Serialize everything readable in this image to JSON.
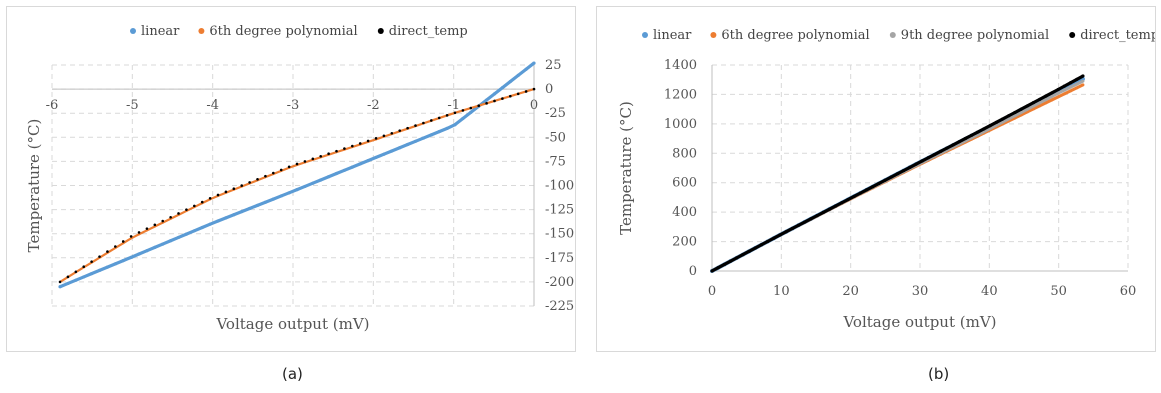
{
  "chart_data": [
    {
      "type": "scatter",
      "panel_label": "(a)",
      "xlabel": "Voltage output (mV)",
      "ylabel": "Temperature (°C)",
      "xlim": [
        -6,
        0
      ],
      "ylim": [
        -225,
        25
      ],
      "x_ticks": [
        "-6",
        "-5",
        "-4",
        "-3",
        "-2",
        "-1",
        "0"
      ],
      "y_ticks": [
        "25",
        "0",
        "-25",
        "-50",
        "-75",
        "-100",
        "-125",
        "-150",
        "-175",
        "-200",
        "-225"
      ],
      "grid": true,
      "legend_position": "top",
      "series": [
        {
          "name": "linear",
          "color": "#5b9bd5",
          "points": [
            [
              -5.9,
              -205
            ],
            [
              -5,
              -174
            ],
            [
              -4,
              -139
            ],
            [
              -3,
              -106
            ],
            [
              -2,
              -72
            ],
            [
              -1,
              -38
            ],
            [
              0,
              27
            ]
          ]
        },
        {
          "name": "6th degree polynomial",
          "color": "#ed7d31",
          "points": [
            [
              -5.9,
              -200
            ],
            [
              -5,
              -154
            ],
            [
              -4,
              -113
            ],
            [
              -3,
              -80
            ],
            [
              -2,
              -53
            ],
            [
              -1,
              -25
            ],
            [
              0,
              0
            ]
          ]
        },
        {
          "name": "direct_temp",
          "color": "#000000",
          "points": [
            [
              -5.9,
              -200
            ],
            [
              -5,
              -152
            ],
            [
              -4,
              -112
            ],
            [
              -3,
              -79
            ],
            [
              -2,
              -52
            ],
            [
              -1,
              -25
            ],
            [
              0,
              0
            ]
          ]
        }
      ]
    },
    {
      "type": "scatter",
      "panel_label": "(b)",
      "xlabel": "Voltage output (mV)",
      "ylabel": "Temperature (°C)",
      "xlim": [
        0,
        60
      ],
      "ylim": [
        0,
        1400
      ],
      "x_ticks": [
        "0",
        "10",
        "20",
        "30",
        "40",
        "50",
        "60"
      ],
      "y_ticks": [
        "0",
        "200",
        "400",
        "600",
        "800",
        "1000",
        "1200",
        "1400"
      ],
      "grid": true,
      "legend_position": "top",
      "series": [
        {
          "name": "linear",
          "color": "#5b9bd5",
          "points": [
            [
              0,
              0
            ],
            [
              10,
              250
            ],
            [
              20,
              495
            ],
            [
              30,
              740
            ],
            [
              40,
              980
            ],
            [
              50,
              1225
            ],
            [
              53.5,
              1305
            ]
          ]
        },
        {
          "name": "6th degree polynomial",
          "color": "#ed7d31",
          "points": [
            [
              0,
              0
            ],
            [
              10,
              250
            ],
            [
              20,
              490
            ],
            [
              30,
              725
            ],
            [
              40,
              955
            ],
            [
              50,
              1185
            ],
            [
              53.5,
              1265
            ]
          ]
        },
        {
          "name": "9th degree polynomial",
          "color": "#a5a5a5",
          "points": [
            [
              0,
              0
            ],
            [
              10,
              250
            ],
            [
              20,
              492
            ],
            [
              30,
              730
            ],
            [
              40,
              965
            ],
            [
              50,
              1210
            ],
            [
              53.5,
              1290
            ]
          ]
        },
        {
          "name": "direct_temp",
          "color": "#000000",
          "points": [
            [
              0,
              0
            ],
            [
              10,
              250
            ],
            [
              20,
              495
            ],
            [
              30,
              740
            ],
            [
              40,
              985
            ],
            [
              50,
              1235
            ],
            [
              53.5,
              1325
            ]
          ]
        }
      ]
    }
  ]
}
